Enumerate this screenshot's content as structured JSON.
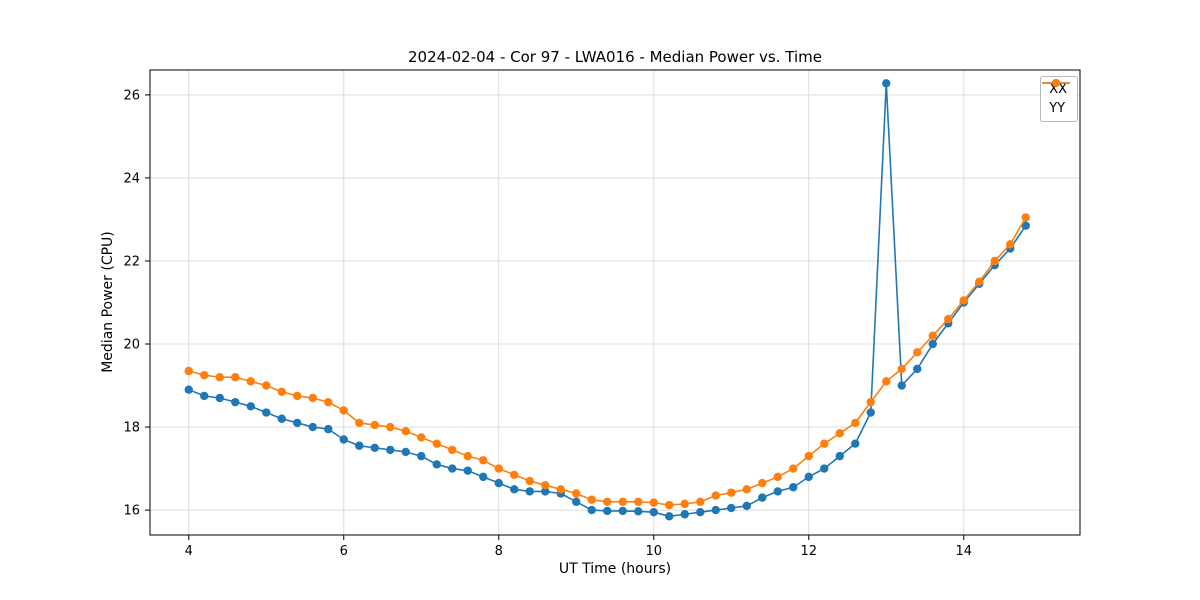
{
  "chart_data": {
    "type": "line",
    "title": "2024-02-04 - Cor 97 - LWA016 - Median Power vs. Time",
    "xlabel": "UT Time (hours)",
    "ylabel": "Median Power (CPU)",
    "xlim": [
      3.5,
      15.5
    ],
    "ylim": [
      15.4,
      26.6
    ],
    "xticks": [
      4,
      6,
      8,
      10,
      12,
      14
    ],
    "yticks": [
      16,
      18,
      20,
      22,
      24,
      26
    ],
    "grid": true,
    "legend_position": "upper right",
    "marker": "circle",
    "grid_color": "#dcdcdc",
    "x": [
      4.0,
      4.2,
      4.4,
      4.6,
      4.8,
      5.0,
      5.2,
      5.4,
      5.6,
      5.8,
      6.0,
      6.2,
      6.4,
      6.6,
      6.8,
      7.0,
      7.2,
      7.4,
      7.6,
      7.8,
      8.0,
      8.2,
      8.4,
      8.6,
      8.8,
      9.0,
      9.2,
      9.4,
      9.6,
      9.8,
      10.0,
      10.2,
      10.4,
      10.6,
      10.8,
      11.0,
      11.2,
      11.4,
      11.6,
      11.8,
      12.0,
      12.2,
      12.4,
      12.6,
      12.8,
      13.0,
      13.2,
      13.4,
      13.6,
      13.8,
      14.0,
      14.2,
      14.4,
      14.6,
      14.8
    ],
    "series": [
      {
        "name": "XX",
        "color": "#1f77b4",
        "values": [
          18.9,
          18.75,
          18.7,
          18.6,
          18.5,
          18.35,
          18.2,
          18.1,
          18.0,
          17.95,
          17.7,
          17.55,
          17.5,
          17.45,
          17.4,
          17.3,
          17.1,
          17.0,
          16.95,
          16.8,
          16.65,
          16.5,
          16.45,
          16.45,
          16.4,
          16.2,
          16.0,
          15.98,
          15.98,
          15.97,
          15.95,
          15.85,
          15.9,
          15.95,
          16.0,
          16.05,
          16.1,
          16.3,
          16.45,
          16.55,
          16.8,
          17.0,
          17.3,
          17.6,
          18.35,
          26.28,
          19.0,
          19.4,
          20.0,
          20.5,
          21.0,
          21.45,
          21.9,
          22.3,
          22.85
        ]
      },
      {
        "name": "YY",
        "color": "#ff7f0e",
        "values": [
          19.35,
          19.25,
          19.2,
          19.2,
          19.1,
          19.0,
          18.85,
          18.75,
          18.7,
          18.6,
          18.4,
          18.1,
          18.05,
          18.0,
          17.9,
          17.75,
          17.6,
          17.45,
          17.3,
          17.2,
          17.0,
          16.85,
          16.7,
          16.6,
          16.5,
          16.4,
          16.25,
          16.2,
          16.2,
          16.2,
          16.18,
          16.12,
          16.15,
          16.2,
          16.35,
          16.42,
          16.5,
          16.65,
          16.8,
          17.0,
          17.3,
          17.6,
          17.85,
          18.1,
          18.6,
          19.1,
          19.4,
          19.8,
          20.2,
          20.6,
          21.05,
          21.5,
          22.0,
          22.4,
          23.05
        ]
      }
    ]
  }
}
